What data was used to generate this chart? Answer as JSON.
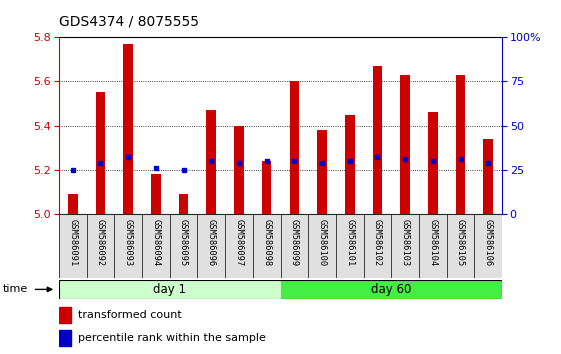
{
  "title": "GDS4374 / 8075555",
  "samples": [
    "GSM586091",
    "GSM586092",
    "GSM586093",
    "GSM586094",
    "GSM586095",
    "GSM586096",
    "GSM586097",
    "GSM586098",
    "GSM586099",
    "GSM586100",
    "GSM586101",
    "GSM586102",
    "GSM586103",
    "GSM586104",
    "GSM586105",
    "GSM586106"
  ],
  "red_values": [
    5.09,
    5.55,
    5.77,
    5.18,
    5.09,
    5.47,
    5.4,
    5.24,
    5.6,
    5.38,
    5.45,
    5.67,
    5.63,
    5.46,
    5.63,
    5.34
  ],
  "blue_values": [
    5.2,
    5.23,
    5.26,
    5.21,
    5.2,
    5.24,
    5.23,
    5.24,
    5.24,
    5.23,
    5.24,
    5.26,
    5.25,
    5.24,
    5.25,
    5.23
  ],
  "ymin": 5.0,
  "ymax": 5.8,
  "y2min": 0,
  "y2max": 100,
  "yticks": [
    5.0,
    5.2,
    5.4,
    5.6,
    5.8
  ],
  "y2ticks": [
    0,
    25,
    50,
    75,
    100
  ],
  "groups": [
    {
      "label": "day 1",
      "start": 0,
      "end": 8,
      "color": "#ccffcc"
    },
    {
      "label": "day 60",
      "start": 8,
      "end": 16,
      "color": "#44ee44"
    }
  ],
  "bar_color": "#cc0000",
  "blue_color": "#0000cc",
  "bar_width": 0.35,
  "bg_color": "#ffffff",
  "ylabel_color": "#cc0000",
  "y2label_color": "#0000cc",
  "time_label": "time",
  "legend1": "transformed count",
  "legend2": "percentile rank within the sample",
  "title_fontsize": 10,
  "tick_fontsize": 8,
  "label_fontsize": 7.5
}
